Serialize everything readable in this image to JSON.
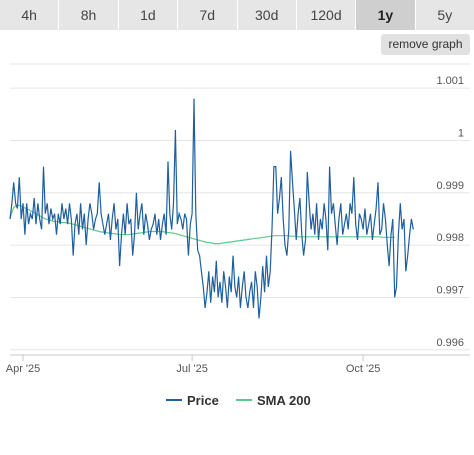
{
  "range_tabs": [
    {
      "label": "4h",
      "active": false
    },
    {
      "label": "8h",
      "active": false
    },
    {
      "label": "1d",
      "active": false
    },
    {
      "label": "7d",
      "active": false
    },
    {
      "label": "30d",
      "active": false
    },
    {
      "label": "120d",
      "active": false
    },
    {
      "label": "1y",
      "active": true
    },
    {
      "label": "5y",
      "active": false
    }
  ],
  "remove_graph_label": "remove graph",
  "colors": {
    "price": "#1f5f9e",
    "sma": "#5ec98d",
    "grid": "#e6e6e6",
    "axis": "#c9c9c9"
  },
  "chart_data": {
    "type": "line",
    "x_ticks": [
      {
        "label": "Apr '25",
        "day": 0
      },
      {
        "label": "Jul '25",
        "day": 91
      },
      {
        "label": "Oct '25",
        "day": 183
      }
    ],
    "y_ticks": [
      0.996,
      0.997,
      0.998,
      0.999,
      1,
      1.001
    ],
    "ylim": [
      0.9959,
      1.0015
    ],
    "xlim": [
      -7,
      219
    ],
    "grid": "horizontal",
    "legend": "bottom-center",
    "series": [
      {
        "name": "Price",
        "color": "#1f5f9e",
        "values": [
          0.9985,
          0.9988,
          0.9992,
          0.9988,
          0.9987,
          0.9993,
          0.9985,
          0.9988,
          0.9982,
          0.9988,
          0.9984,
          0.9986,
          0.9985,
          0.9989,
          0.9984,
          0.9988,
          0.9985,
          0.9983,
          0.9985,
          0.9986,
          0.9988,
          0.9984,
          0.9987,
          0.9985,
          0.9986,
          0.9982,
          0.9986,
          0.9984,
          0.9988,
          0.9985,
          0.9987,
          0.9984,
          0.9988,
          0.9985,
          0.9978,
          0.9984,
          0.9986,
          0.9982,
          0.9988,
          0.9983,
          0.9986,
          0.998,
          0.9985,
          0.9988,
          0.9986,
          0.9983,
          0.9985,
          0.9986,
          0.9988,
          0.9986,
          0.9984,
          0.9982,
          0.9984,
          0.9986,
          0.9981,
          0.9985,
          0.9988,
          0.9983,
          0.9985,
          0.9976,
          0.9982,
          0.9986,
          0.9982,
          0.9988,
          0.9984,
          0.9985,
          0.9978,
          0.9982,
          0.9986,
          0.9983,
          0.9986,
          0.9988,
          0.9982,
          0.9986,
          0.9984,
          0.9981,
          0.9983,
          0.9984,
          0.9986,
          0.9982,
          0.9985,
          0.9981,
          0.9984,
          0.9986,
          0.9982,
          0.9996,
          0.9986,
          0.9983,
          0.9988,
          0.9985,
          0.9984,
          0.9986,
          0.9985,
          0.9983,
          0.9986,
          0.9985,
          0.9978,
          0.9984,
          0.9986,
          0.9982,
          0.9986,
          0.9979,
          0.9978,
          0.9975,
          0.9972,
          0.9968,
          0.9971,
          0.9975,
          0.9969,
          0.9974,
          0.9971,
          0.9977,
          0.997,
          0.9973,
          0.9969,
          0.9975,
          0.9972,
          0.9968,
          0.9974,
          0.9971,
          0.9978,
          0.9972,
          0.997,
          0.9974,
          0.9968,
          0.9972,
          0.9975,
          0.997,
          0.9968,
          0.9971,
          0.9973,
          0.9968,
          0.9975,
          0.9972,
          0.9966,
          0.997,
          0.9976,
          0.9971,
          0.9978,
          0.9972,
          0.9975,
          0.9983,
          0.9988,
          0.9995,
          0.9986,
          0.9989,
          0.9993,
          0.9985,
          0.998,
          0.9978,
          0.9983,
          0.9988,
          0.9992,
          0.9987,
          0.9981,
          0.9986,
          0.9989,
          0.9982,
          0.9978,
          0.9981,
          0.9985,
          0.9988,
          0.9983,
          0.9986,
          0.9982,
          0.9988,
          0.9981,
          0.9985,
          0.9983,
          0.9988,
          0.9985,
          0.9979,
          0.9983,
          0.9986,
          0.9988,
          0.9984,
          0.998,
          0.9985,
          0.9988,
          0.9982,
          0.9984,
          0.9986,
          0.9983,
          0.9988,
          0.9986,
          0.9983,
          0.9984,
          0.9981,
          0.9986,
          0.9985,
          0.9983,
          0.9987,
          0.9982,
          0.9984,
          0.9986,
          0.9981,
          0.9984,
          0.9987,
          0.9985,
          0.9982,
          0.9983,
          0.9988,
          0.9985,
          0.998,
          0.9976,
          0.9982,
          0.9985,
          0.9983,
          0.9972,
          0.9982,
          0.9988,
          0.9983,
          0.9985,
          0.9975,
          0.9978,
          0.9982,
          0.9985,
          0.9983
        ],
        "spikes": {
          "18": 0.9995,
          "48": 0.9992,
          "68": 0.999,
          "89": 1.0002,
          "99": 1.0008,
          "142": 0.9995,
          "151": 0.9998,
          "160": 0.9994,
          "172": 0.9995,
          "185": 0.9993,
          "198": 0.9992,
          "207": 0.997,
          "208": 0.9972
        }
      },
      {
        "name": "SMA 200",
        "color": "#5ec98d",
        "values": [
          0.9985,
          0.99863,
          0.99872,
          0.99875,
          0.99876,
          0.99876,
          0.99875,
          0.99873,
          0.99871,
          0.99869,
          0.99868,
          0.99866,
          0.99864,
          0.99862,
          0.9986,
          0.99858,
          0.99856,
          0.99854,
          0.99852,
          0.9985,
          0.99849,
          0.99848,
          0.99847,
          0.99846,
          0.99845,
          0.99845,
          0.99844,
          0.99844,
          0.99843,
          0.99843,
          0.99843,
          0.99842,
          0.99842,
          0.99841,
          0.9984,
          0.99839,
          0.99838,
          0.99837,
          0.99836,
          0.99835,
          0.99834,
          0.99833,
          0.99832,
          0.99831,
          0.9983,
          0.99829,
          0.99828,
          0.99827,
          0.99826,
          0.99825,
          0.99825,
          0.99824,
          0.99824,
          0.99823,
          0.99823,
          0.99822,
          0.99822,
          0.99821,
          0.99821,
          0.9982,
          0.9982,
          0.9982,
          0.9982,
          0.9982,
          0.9982,
          0.99821,
          0.99821,
          0.99822,
          0.99822,
          0.99823,
          0.99823,
          0.99824,
          0.99824,
          0.99825,
          0.99825,
          0.99826,
          0.99826,
          0.99826,
          0.99826,
          0.99826,
          0.99826,
          0.99826,
          0.99826,
          0.99825,
          0.99825,
          0.99824,
          0.99824,
          0.99823,
          0.99823,
          0.99822,
          0.99821,
          0.9982,
          0.99819,
          0.99818,
          0.99817,
          0.99816,
          0.99815,
          0.99814,
          0.99813,
          0.99812,
          0.99811,
          0.9981,
          0.99809,
          0.99808,
          0.99807,
          0.99806,
          0.99805,
          0.99805,
          0.99804,
          0.99804,
          0.99803,
          0.99803,
          0.99803,
          0.99803,
          0.99804,
          0.99804,
          0.99805,
          0.99805,
          0.99806,
          0.99806,
          0.99807,
          0.99807,
          0.99808,
          0.99808,
          0.99809,
          0.99809,
          0.9981,
          0.9981,
          0.99811,
          0.99811,
          0.99812,
          0.99812,
          0.99813,
          0.99813,
          0.99814,
          0.99814,
          0.99815,
          0.99815,
          0.99816,
          0.99816,
          0.99817,
          0.99817,
          0.99818,
          0.99818,
          0.99818,
          0.99818,
          0.99818,
          0.99818,
          0.99818,
          0.99818,
          0.99818,
          0.99817,
          0.99817,
          0.99817,
          0.99817,
          0.99816,
          0.99816,
          0.99816,
          0.99816,
          0.99816,
          0.99816,
          0.99816,
          0.99816,
          0.99816,
          0.99816,
          0.99816,
          0.99816,
          0.99816,
          0.99816,
          0.99816,
          0.99816,
          0.99816,
          0.99816,
          0.99816,
          0.99816,
          0.99816,
          0.99816,
          0.99816,
          0.99816,
          0.99816,
          0.99816,
          0.99816,
          0.99816,
          0.99816,
          0.99816,
          0.99816,
          0.99816,
          0.99816,
          0.99816,
          0.99816,
          0.99816,
          0.99816,
          0.99816,
          0.99816,
          0.99816,
          0.99816,
          0.99816,
          0.99816,
          0.99816,
          0.99816,
          0.99815,
          0.99815,
          0.99815,
          0.99815,
          0.99815,
          0.99815,
          0.99815,
          0.99815
        ]
      }
    ]
  }
}
